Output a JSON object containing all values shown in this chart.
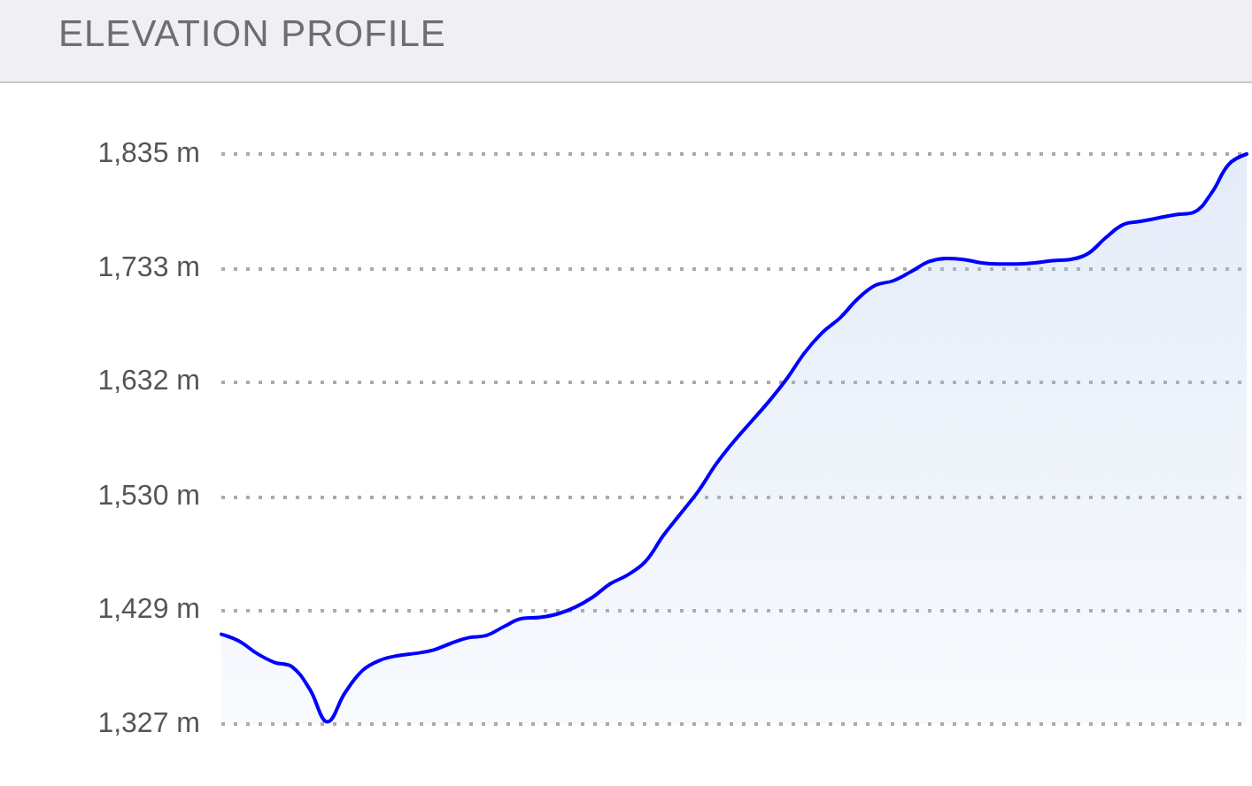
{
  "chart_data": {
    "type": "area",
    "title": "ELEVATION PROFILE",
    "categories": [
      null,
      null,
      null,
      null,
      null,
      null,
      null,
      null,
      null,
      null,
      null,
      null,
      null,
      null,
      null,
      null,
      null,
      null,
      null,
      null,
      null,
      null,
      null,
      null,
      null,
      null,
      null,
      null,
      null,
      null,
      null,
      null,
      null,
      null,
      null,
      null,
      null,
      null,
      null,
      null,
      null,
      null,
      null,
      null,
      null,
      null,
      null,
      null,
      null,
      null,
      null,
      null,
      null,
      null,
      null,
      null,
      null,
      null,
      null
    ],
    "series": [
      {
        "color": "#0000ff",
        "values": [
          1407,
          1401,
          1390,
          1382,
          1378,
          1358,
          1329,
          1355,
          1375,
          1384,
          1388,
          1390,
          1393,
          1399,
          1404,
          1406,
          1414,
          1421,
          1422,
          1425,
          1431,
          1440,
          1452,
          1460,
          1472,
          1495,
          1515,
          1535,
          1559,
          1579,
          1597,
          1615,
          1635,
          1658,
          1676,
          1689,
          1706,
          1718,
          1722,
          1730,
          1739,
          1742,
          1741,
          1738,
          1737,
          1737,
          1738,
          1740,
          1741,
          1746,
          1760,
          1772,
          1775,
          1778,
          1781,
          1783,
          1800,
          1826,
          1835
        ]
      }
    ],
    "ylim": [
      1327,
      1835
    ],
    "yticks": [
      {
        "value": 1327,
        "label": "1,327 m"
      },
      {
        "value": 1429,
        "label": "1,429 m"
      },
      {
        "value": 1530,
        "label": "1,530 m"
      },
      {
        "value": 1632,
        "label": "1,632 m"
      },
      {
        "value": 1733,
        "label": "1,733 m"
      },
      {
        "value": 1835,
        "label": "1,835 m"
      }
    ],
    "grid": "y",
    "marker": "none",
    "line_style": "solid"
  }
}
